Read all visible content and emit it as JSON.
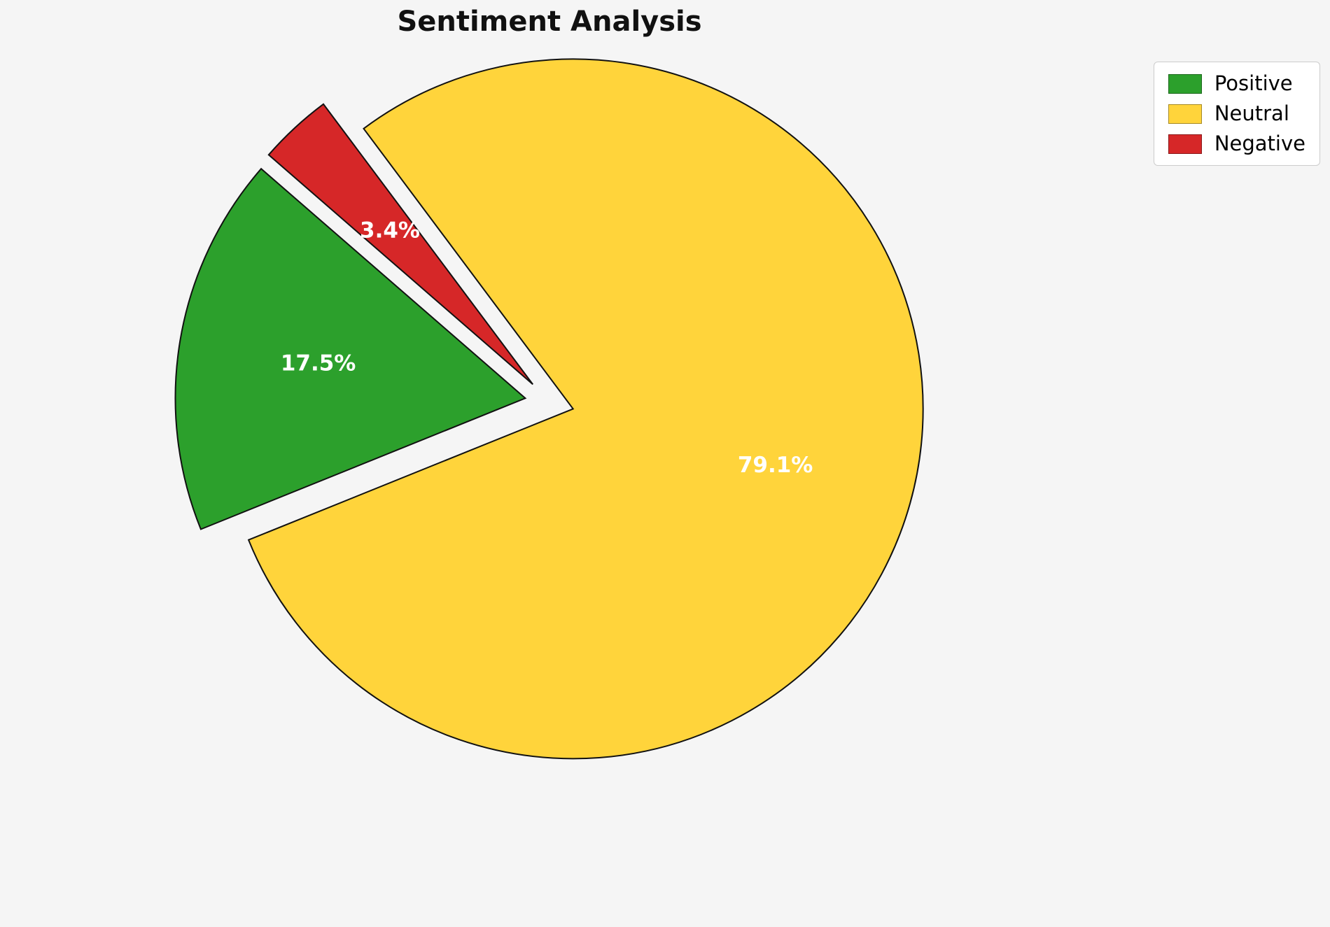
{
  "chart_data": {
    "type": "pie",
    "title": "Sentiment Analysis",
    "labels": [
      "Positive",
      "Neutral",
      "Negative"
    ],
    "values": [
      17.5,
      79.1,
      3.4
    ],
    "percent_labels": [
      "17.5%",
      "79.1%",
      "3.4%"
    ],
    "colors": {
      "Positive": "#2ca02c",
      "Neutral": "#ffd43b",
      "Negative": "#d62728"
    },
    "start_angle": 139,
    "counterclockwise": true,
    "explode": [
      0.07,
      0.07,
      0.07
    ],
    "pct_distance": 0.6,
    "legend_position": "upper right",
    "background_color": "#f5f5f5",
    "edge_color": "#111111",
    "pct_label_color": "#ffffff"
  }
}
